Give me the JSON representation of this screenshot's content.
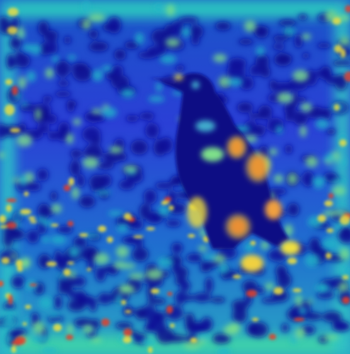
{
  "image": {
    "subject": "bird",
    "overlay": "jet-colormap-heatmap",
    "colors": {
      "low": "#0a0a8c",
      "mid_low": "#2a3fd6",
      "mid": "#1fb5c9",
      "mid_high": "#7ee08a",
      "high": "#f0e040",
      "peak": "#e0402a"
    }
  }
}
